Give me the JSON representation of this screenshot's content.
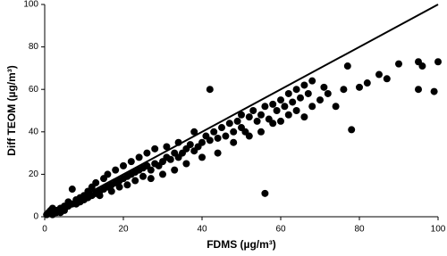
{
  "chart_data": {
    "type": "scatter",
    "x_label": "FDMS (µg/m³)",
    "y_label": "Diff TEOM (µg/m³)",
    "xlim": [
      0,
      100
    ],
    "ylim": [
      0,
      100
    ],
    "xticks": [
      0,
      20,
      40,
      60,
      80,
      100
    ],
    "yticks": [
      0,
      20,
      40,
      60,
      80,
      100
    ],
    "color": "#000000",
    "series": [
      {
        "name": "Diff TEOM",
        "x": [
          0.5,
          1,
          1.5,
          2,
          2,
          3,
          3,
          4,
          4,
          5,
          5,
          6,
          6,
          7,
          7,
          8,
          8,
          9,
          9,
          10,
          10,
          11,
          11,
          12,
          12,
          13,
          13,
          14,
          14,
          15,
          15,
          16,
          16,
          17,
          17,
          18,
          18,
          19,
          19,
          20,
          20,
          21,
          21,
          22,
          22,
          23,
          23,
          24,
          24,
          25,
          25,
          26,
          26,
          27,
          27,
          28,
          28,
          29,
          30,
          30,
          31,
          31,
          32,
          33,
          33,
          34,
          34,
          35,
          36,
          36,
          37,
          38,
          38,
          39,
          40,
          40,
          41,
          42,
          42,
          43,
          44,
          44,
          45,
          46,
          47,
          48,
          48,
          49,
          50,
          50,
          51,
          52,
          52,
          53,
          54,
          55,
          55,
          56,
          56,
          57,
          58,
          58,
          59,
          60,
          60,
          61,
          62,
          62,
          63,
          64,
          64,
          65,
          66,
          66,
          67,
          68,
          68,
          70,
          71,
          72,
          74,
          76,
          77,
          78,
          80,
          82,
          85,
          87,
          90,
          95,
          96,
          95,
          99,
          100
        ],
        "values": [
          1,
          2,
          3,
          1,
          4,
          2,
          3,
          4,
          2,
          5,
          3,
          5,
          7,
          13,
          6,
          6,
          8,
          7,
          9,
          8,
          10,
          9,
          12,
          10,
          14,
          11,
          16,
          12,
          10,
          13,
          18,
          14,
          20,
          15,
          12,
          16,
          22,
          17,
          14,
          18,
          24,
          19,
          15,
          20,
          26,
          21,
          17,
          22,
          28,
          23,
          19,
          24,
          30,
          22,
          18,
          25,
          32,
          24,
          26,
          20,
          28,
          33,
          27,
          30,
          22,
          28,
          35,
          30,
          32,
          25,
          34,
          31,
          40,
          33,
          35,
          28,
          38,
          36,
          60,
          40,
          37,
          30,
          42,
          38,
          44,
          40,
          35,
          45,
          42,
          48,
          40,
          47,
          38,
          50,
          45,
          48,
          40,
          11,
          52,
          46,
          53,
          44,
          50,
          55,
          45,
          52,
          58,
          48,
          54,
          60,
          50,
          56,
          62,
          47,
          58,
          64,
          52,
          55,
          61,
          58,
          52,
          60,
          71,
          41,
          61,
          63,
          67,
          65,
          72,
          73,
          71,
          60,
          59,
          73
        ]
      }
    ]
  }
}
